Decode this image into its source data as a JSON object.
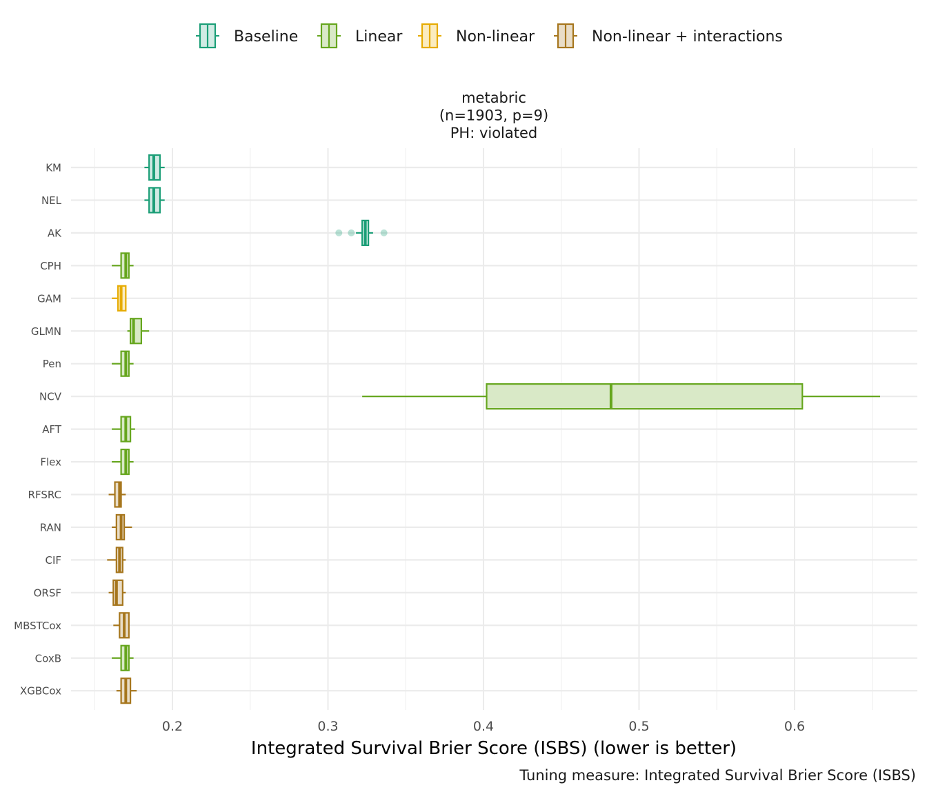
{
  "chart_data": {
    "type": "boxplot",
    "title_lines": [
      "metabric",
      "(n=1903, p=9)",
      "PH: violated"
    ],
    "xlabel": "Integrated Survival Brier Score (ISBS) (lower is better)",
    "caption": "Tuning measure: Integrated Survival Brier Score (ISBS)",
    "xlim": [
      0.135,
      0.665
    ],
    "xticks": [
      0.2,
      0.3,
      0.4,
      0.5,
      0.6
    ],
    "xtick_labels": [
      "0.2",
      "0.3",
      "0.4",
      "0.5",
      "0.6"
    ],
    "legend": [
      {
        "name": "Baseline",
        "color": "#1b9e77",
        "fill": "#d1ebe4"
      },
      {
        "name": "Linear",
        "color": "#66a61e",
        "fill": "#d9e9c7"
      },
      {
        "name": "Non-linear",
        "color": "#e6ab02",
        "fill": "#fbecc0"
      },
      {
        "name": "Non-linear + interactions",
        "color": "#a6761d",
        "fill": "#e9ddc7"
      }
    ],
    "models": [
      {
        "name": "KM",
        "group": "Baseline",
        "whisker_low": 0.182,
        "q1": 0.185,
        "median": 0.188,
        "q3": 0.192,
        "whisker_high": 0.195,
        "outliers": []
      },
      {
        "name": "NEL",
        "group": "Baseline",
        "whisker_low": 0.182,
        "q1": 0.185,
        "median": 0.188,
        "q3": 0.192,
        "whisker_high": 0.195,
        "outliers": []
      },
      {
        "name": "AK",
        "group": "Baseline",
        "whisker_low": 0.318,
        "q1": 0.322,
        "median": 0.324,
        "q3": 0.326,
        "whisker_high": 0.329,
        "outliers": [
          0.307,
          0.315,
          0.336
        ]
      },
      {
        "name": "CPH",
        "group": "Linear",
        "whisker_low": 0.161,
        "q1": 0.167,
        "median": 0.17,
        "q3": 0.172,
        "whisker_high": 0.175,
        "outliers": []
      },
      {
        "name": "GAM",
        "group": "Non-linear",
        "whisker_low": 0.161,
        "q1": 0.165,
        "median": 0.167,
        "q3": 0.17,
        "whisker_high": 0.17,
        "outliers": []
      },
      {
        "name": "GLMN",
        "group": "Linear",
        "whisker_low": 0.171,
        "q1": 0.173,
        "median": 0.175,
        "q3": 0.18,
        "whisker_high": 0.185,
        "outliers": []
      },
      {
        "name": "Pen",
        "group": "Linear",
        "whisker_low": 0.161,
        "q1": 0.167,
        "median": 0.17,
        "q3": 0.172,
        "whisker_high": 0.175,
        "outliers": []
      },
      {
        "name": "NCV",
        "group": "Linear",
        "whisker_low": 0.322,
        "q1": 0.402,
        "median": 0.482,
        "q3": 0.605,
        "whisker_high": 0.655,
        "outliers": []
      },
      {
        "name": "AFT",
        "group": "Linear",
        "whisker_low": 0.161,
        "q1": 0.167,
        "median": 0.17,
        "q3": 0.173,
        "whisker_high": 0.176,
        "outliers": []
      },
      {
        "name": "Flex",
        "group": "Linear",
        "whisker_low": 0.161,
        "q1": 0.167,
        "median": 0.17,
        "q3": 0.172,
        "whisker_high": 0.175,
        "outliers": []
      },
      {
        "name": "RFSRC",
        "group": "Non-linear + interactions",
        "whisker_low": 0.159,
        "q1": 0.163,
        "median": 0.166,
        "q3": 0.167,
        "whisker_high": 0.17,
        "outliers": []
      },
      {
        "name": "RAN",
        "group": "Non-linear + interactions",
        "whisker_low": 0.161,
        "q1": 0.164,
        "median": 0.167,
        "q3": 0.169,
        "whisker_high": 0.174,
        "outliers": []
      },
      {
        "name": "CIF",
        "group": "Non-linear + interactions",
        "whisker_low": 0.158,
        "q1": 0.164,
        "median": 0.166,
        "q3": 0.168,
        "whisker_high": 0.17,
        "outliers": []
      },
      {
        "name": "ORSF",
        "group": "Non-linear + interactions",
        "whisker_low": 0.159,
        "q1": 0.162,
        "median": 0.164,
        "q3": 0.168,
        "whisker_high": 0.17,
        "outliers": []
      },
      {
        "name": "MBSTCox",
        "group": "Non-linear + interactions",
        "whisker_low": 0.162,
        "q1": 0.166,
        "median": 0.169,
        "q3": 0.172,
        "whisker_high": 0.172,
        "outliers": []
      },
      {
        "name": "CoxB",
        "group": "Linear",
        "whisker_low": 0.161,
        "q1": 0.167,
        "median": 0.17,
        "q3": 0.172,
        "whisker_high": 0.175,
        "outliers": []
      },
      {
        "name": "XGBCox",
        "group": "Non-linear + interactions",
        "whisker_low": 0.164,
        "q1": 0.167,
        "median": 0.17,
        "q3": 0.173,
        "whisker_high": 0.177,
        "outliers": []
      }
    ]
  }
}
